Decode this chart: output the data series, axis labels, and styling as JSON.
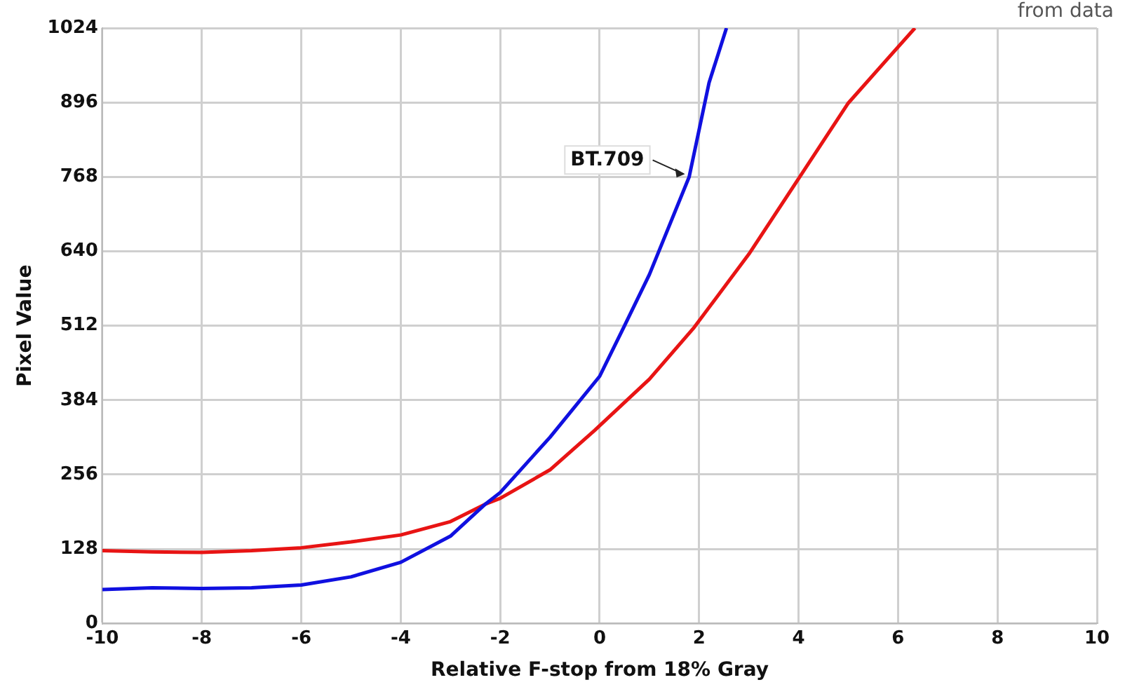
{
  "chart_data": {
    "type": "line",
    "xlabel": "Relative F-stop from 18% Gray",
    "ylabel": "Pixel Value",
    "annotations": [
      "from data"
    ],
    "xlim": [
      -10,
      10
    ],
    "xticks": [
      -10,
      -8,
      -6,
      -4,
      -2,
      0,
      2,
      4,
      6,
      8,
      10
    ],
    "ylim": [
      0,
      1024
    ],
    "yticks": [
      0,
      128,
      256,
      384,
      512,
      640,
      768,
      896,
      1024
    ],
    "grid": true,
    "legend": false,
    "marker": "none",
    "line_style": "solid",
    "series": [
      {
        "name": "BT.709",
        "color": "#1010e0",
        "x": [
          -10,
          -9,
          -8,
          -7,
          -6,
          -5,
          -4,
          -3,
          -2.3,
          -2,
          -1,
          0,
          0.5,
          1,
          1.8,
          2.2,
          2.55
        ],
        "values": [
          58,
          61,
          60,
          61,
          66,
          80,
          105,
          150,
          205,
          225,
          320,
          425,
          512,
          600,
          768,
          930,
          1024
        ]
      },
      {
        "color": "#e81414",
        "x": [
          -10,
          -9,
          -8,
          -7,
          -6,
          -5,
          -4,
          -3,
          -2.3,
          -2,
          -1,
          -0.1,
          1,
          1.9,
          3,
          4,
          5,
          6.34
        ],
        "values": [
          125,
          123,
          122,
          125,
          130,
          140,
          152,
          175,
          205,
          215,
          264,
          332,
          420,
          509,
          635,
          765,
          895,
          1024
        ]
      }
    ]
  }
}
